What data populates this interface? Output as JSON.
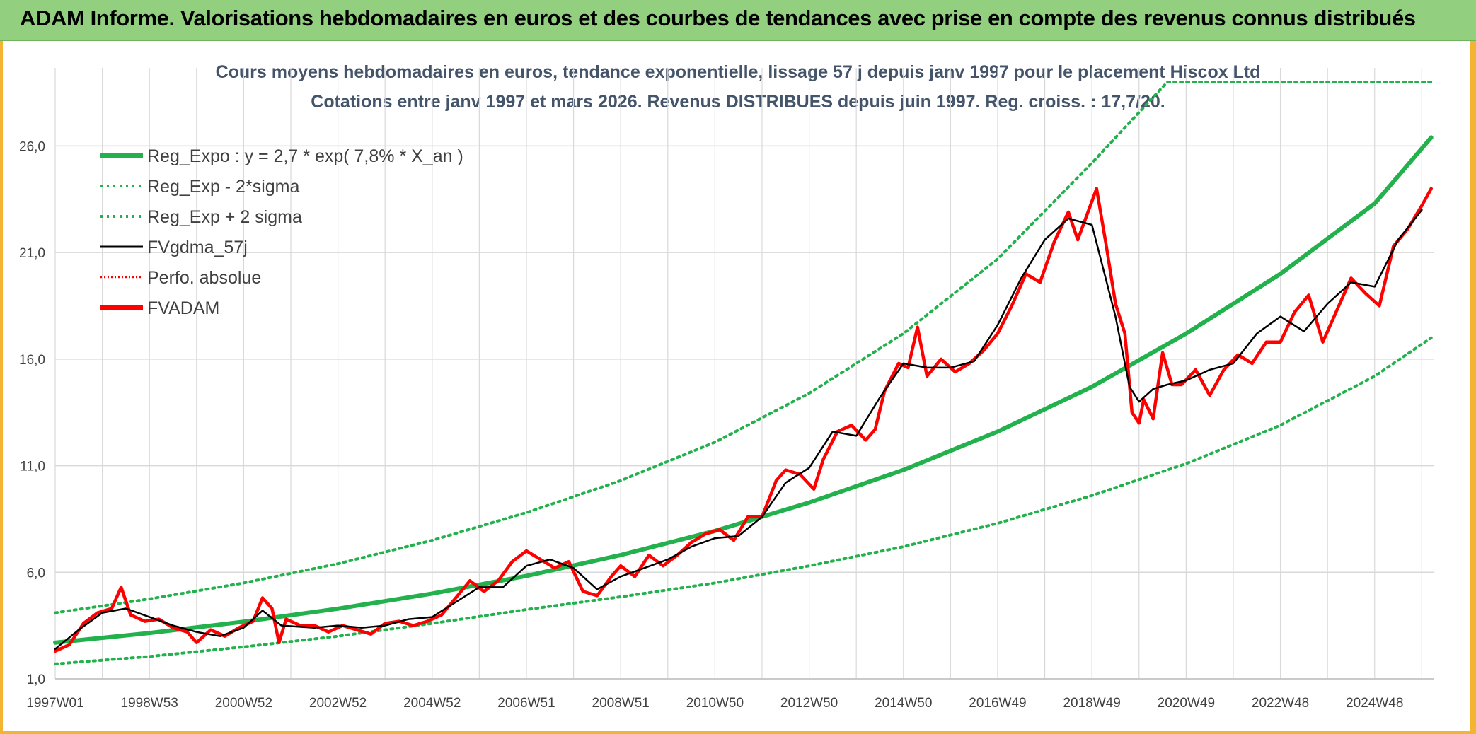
{
  "header": {
    "title": "ADAM Informe. Valorisations hebdomadaires en euros et des courbes de tendances avec prise en compte des revenus connus distribués"
  },
  "colors": {
    "header_bg": "#92d07f",
    "frame": "#f2b431",
    "reg_expo": "#22b14c",
    "band": "#22b14c",
    "fvgdma": "#000000",
    "fvadam": "#ff0000",
    "perfo": "#ff0000",
    "subtitle": "#44546a",
    "grid": "#d9d9d9"
  },
  "chart_data": {
    "type": "line",
    "title_lines": [
      "Cours moyens hebdomadaires en euros, tendance exponentielle, lissage 57 j depuis janv 1997 pour le placement Hiscox Ltd",
      "Cotations entre janv 1997 et mars 2026. Revenus DISTRIBUES depuis juin 1997. Reg. croiss. : 17,7/20."
    ],
    "xlabel": "",
    "ylabel": "",
    "ylim": [
      1,
      29
    ],
    "xlim": [
      1997.0,
      2026.25
    ],
    "yticks": [
      "1,0",
      "6,0",
      "11,0",
      "16,0",
      "21,0",
      "26,0"
    ],
    "ytick_values": [
      1,
      6,
      11,
      16,
      21,
      26
    ],
    "xticks": [
      "1997W01",
      "1998W53",
      "2000W52",
      "2002W52",
      "2004W52",
      "2006W51",
      "2008W51",
      "2010W50",
      "2012W50",
      "2014W50",
      "2016W49",
      "2018W49",
      "2020W49",
      "2022W48",
      "2024W48"
    ],
    "xtick_positions": [
      1997.0,
      1999.0,
      2001.0,
      2003.0,
      2005.0,
      2007.0,
      2009.0,
      2011.0,
      2013.0,
      2015.0,
      2017.0,
      2019.0,
      2021.0,
      2023.0,
      2025.0
    ],
    "grid": true,
    "legend_position": "top-left",
    "series": [
      {
        "name": "Reg_Expo : y = 2,7 * exp( 7,8% *  X_an )",
        "style": "solid-thick",
        "color": "#22b14c",
        "x": [
          1997,
          1999,
          2001,
          2003,
          2005,
          2007,
          2009,
          2011,
          2013,
          2015,
          2017,
          2019,
          2021,
          2023,
          2025,
          2026.2
        ],
        "values": [
          2.7,
          3.15,
          3.68,
          4.29,
          5.0,
          5.83,
          6.81,
          7.94,
          9.27,
          10.8,
          12.6,
          14.7,
          17.2,
          20.0,
          23.3,
          26.4
        ]
      },
      {
        "name": "Reg_Exp - 2*sigma",
        "style": "dotted",
        "color": "#22b14c",
        "x": [
          1997,
          1999,
          2001,
          2003,
          2005,
          2007,
          2009,
          2011,
          2013,
          2015,
          2017,
          2019,
          2021,
          2023,
          2025,
          2026.2
        ],
        "values": [
          1.7,
          2.05,
          2.5,
          3.0,
          3.6,
          4.25,
          4.85,
          5.5,
          6.3,
          7.2,
          8.3,
          9.6,
          11.1,
          12.9,
          15.2,
          17.0
        ]
      },
      {
        "name": "Reg_Exp + 2 sigma",
        "style": "dotted",
        "color": "#22b14c",
        "x": [
          1997,
          1999,
          2001,
          2003,
          2005,
          2007,
          2009,
          2011,
          2013,
          2015,
          2017,
          2019,
          2020.6,
          2026.2
        ],
        "values": [
          4.1,
          4.75,
          5.5,
          6.4,
          7.5,
          8.8,
          10.3,
          12.1,
          14.4,
          17.2,
          20.7,
          25.2,
          29.0,
          29.0
        ]
      },
      {
        "name": "FVgdma_57j",
        "style": "solid",
        "color": "#000000",
        "x": [
          1997.0,
          1997.5,
          1998.0,
          1998.5,
          1999.0,
          1999.5,
          2000.0,
          2000.5,
          2001.0,
          2001.4,
          2001.8,
          2002.5,
          2003.0,
          2003.5,
          2004.0,
          2004.5,
          2005.0,
          2005.5,
          2006.0,
          2006.5,
          2007.0,
          2007.5,
          2008.0,
          2008.5,
          2009.0,
          2009.5,
          2010.0,
          2010.5,
          2011.0,
          2011.5,
          2012.0,
          2012.5,
          2013.0,
          2013.5,
          2014.0,
          2014.5,
          2015.0,
          2015.5,
          2016.0,
          2016.5,
          2017.0,
          2017.5,
          2018.0,
          2018.5,
          2019.0,
          2019.5,
          2019.8,
          2020.0,
          2020.3,
          2020.6,
          2021.0,
          2021.5,
          2022.0,
          2022.5,
          2023.0,
          2023.5,
          2024.0,
          2024.5,
          2025.0,
          2025.5,
          2026.0
        ],
        "values": [
          2.4,
          3.3,
          4.1,
          4.3,
          3.9,
          3.5,
          3.2,
          3.0,
          3.4,
          4.2,
          3.5,
          3.4,
          3.5,
          3.4,
          3.5,
          3.8,
          3.9,
          4.6,
          5.3,
          5.3,
          6.3,
          6.6,
          6.2,
          5.2,
          5.8,
          6.2,
          6.6,
          7.2,
          7.6,
          7.7,
          8.6,
          10.2,
          10.9,
          12.6,
          12.4,
          14.2,
          15.8,
          15.6,
          15.6,
          15.9,
          17.6,
          19.8,
          21.6,
          22.6,
          22.3,
          18.0,
          14.7,
          14.0,
          14.6,
          14.8,
          15.0,
          15.5,
          15.8,
          17.2,
          18.0,
          17.3,
          18.6,
          19.6,
          19.4,
          21.6,
          23.0
        ]
      },
      {
        "name": "Perfo. absolue",
        "style": "dotted",
        "color": "#ff0000",
        "x": [],
        "values": []
      },
      {
        "name": "FVADAM",
        "style": "solid-thick",
        "color": "#ff0000",
        "x": [
          1997.0,
          1997.3,
          1997.6,
          1997.9,
          1998.2,
          1998.4,
          1998.6,
          1998.9,
          1999.2,
          1999.5,
          1999.8,
          2000.0,
          2000.3,
          2000.6,
          2000.9,
          2001.2,
          2001.4,
          2001.6,
          2001.75,
          2001.9,
          2002.2,
          2002.5,
          2002.8,
          2003.1,
          2003.4,
          2003.7,
          2004.0,
          2004.3,
          2004.6,
          2004.9,
          2005.2,
          2005.5,
          2005.8,
          2006.1,
          2006.4,
          2006.7,
          2007.0,
          2007.3,
          2007.6,
          2007.9,
          2008.2,
          2008.5,
          2008.8,
          2009.0,
          2009.3,
          2009.6,
          2009.9,
          2010.2,
          2010.5,
          2010.8,
          2011.1,
          2011.4,
          2011.7,
          2012.0,
          2012.3,
          2012.5,
          2012.8,
          2013.1,
          2013.3,
          2013.6,
          2013.9,
          2014.2,
          2014.4,
          2014.6,
          2014.9,
          2015.1,
          2015.3,
          2015.5,
          2015.8,
          2016.1,
          2016.4,
          2016.7,
          2017.0,
          2017.3,
          2017.6,
          2017.9,
          2018.2,
          2018.5,
          2018.7,
          2018.9,
          2019.1,
          2019.3,
          2019.5,
          2019.7,
          2019.85,
          2020.0,
          2020.1,
          2020.3,
          2020.5,
          2020.7,
          2020.9,
          2021.2,
          2021.5,
          2021.8,
          2022.1,
          2022.4,
          2022.7,
          2023.0,
          2023.3,
          2023.6,
          2023.9,
          2024.2,
          2024.5,
          2024.8,
          2025.1,
          2025.4,
          2025.7,
          2026.0,
          2026.2
        ],
        "values": [
          2.3,
          2.6,
          3.6,
          4.1,
          4.3,
          5.3,
          4.0,
          3.7,
          3.8,
          3.4,
          3.2,
          2.7,
          3.3,
          3.0,
          3.4,
          3.7,
          4.8,
          4.3,
          2.7,
          3.8,
          3.5,
          3.5,
          3.2,
          3.5,
          3.3,
          3.1,
          3.6,
          3.7,
          3.5,
          3.7,
          4.0,
          4.8,
          5.6,
          5.1,
          5.6,
          6.5,
          7.0,
          6.6,
          6.2,
          6.5,
          5.1,
          4.9,
          5.8,
          6.3,
          5.8,
          6.8,
          6.3,
          6.8,
          7.4,
          7.8,
          8.0,
          7.5,
          8.6,
          8.6,
          10.3,
          10.8,
          10.6,
          9.9,
          11.3,
          12.6,
          12.9,
          12.2,
          12.7,
          14.5,
          15.8,
          15.6,
          17.5,
          15.2,
          16.0,
          15.4,
          15.8,
          16.4,
          17.2,
          18.5,
          20.0,
          19.6,
          21.5,
          22.9,
          21.6,
          22.8,
          24.0,
          21.4,
          18.6,
          17.2,
          13.5,
          13.0,
          14.1,
          13.2,
          16.3,
          14.8,
          14.8,
          15.5,
          14.3,
          15.5,
          16.2,
          15.8,
          16.8,
          16.8,
          18.2,
          19.0,
          16.8,
          18.3,
          19.8,
          19.1,
          18.5,
          21.3,
          22.1,
          23.2,
          24.0
        ]
      }
    ]
  }
}
